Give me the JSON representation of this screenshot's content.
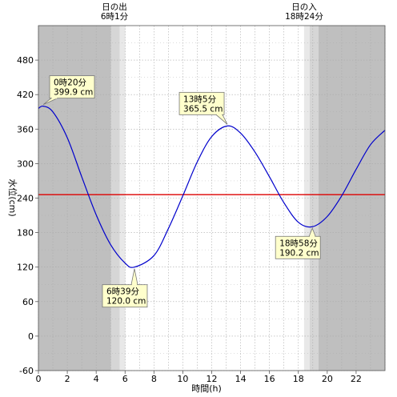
{
  "chart_data": {
    "type": "line",
    "xlabel": "時間(h)",
    "ylabel": "水位(cm)",
    "xlim": [
      0,
      24
    ],
    "ylim": [
      -60,
      540
    ],
    "x_ticks": [
      0,
      2,
      4,
      6,
      8,
      10,
      12,
      14,
      16,
      18,
      20,
      22
    ],
    "x_tick_labels": [
      "0",
      "2",
      "4",
      "6",
      "8",
      "10",
      "12",
      "14",
      "16",
      "18",
      "20",
      "22"
    ],
    "y_ticks": [
      -60,
      0,
      60,
      120,
      180,
      240,
      300,
      360,
      420,
      480
    ],
    "y_tick_labels": [
      "-60",
      "0",
      "60",
      "120",
      "180",
      "240",
      "300",
      "360",
      "420",
      "480"
    ],
    "grid": true,
    "reference_line": {
      "y": 246,
      "color": "#dd0000"
    },
    "sunrise": {
      "label": "日の出",
      "time": "6時1分",
      "hour": 6.017
    },
    "sunset": {
      "label": "日の入",
      "time": "18時24分",
      "hour": 18.4
    },
    "series": [
      {
        "color": "#0000cc",
        "x": [
          0,
          0.333,
          1,
          2,
          3,
          4,
          5,
          6,
          6.65,
          8,
          9,
          10,
          11,
          12,
          13.083,
          14,
          15,
          16,
          17,
          18,
          18.967,
          20,
          21,
          22,
          23,
          24
        ],
        "y": [
          396,
          399.9,
          390,
          345,
          277,
          211,
          159,
          127,
          120.0,
          140,
          187,
          244,
          303,
          347,
          365.5,
          353,
          320,
          277,
          232,
          198,
          190.2,
          208,
          244,
          290,
          333,
          358
        ]
      }
    ],
    "annotations": [
      {
        "time": "0時20分",
        "value": "399.9 cm",
        "x": 0.333,
        "y": 399.9
      },
      {
        "time": "6時39分",
        "value": "120.0 cm",
        "x": 6.65,
        "y": 120.0
      },
      {
        "time": "13時5分",
        "value": "365.5 cm",
        "x": 13.083,
        "y": 365.5
      },
      {
        "time": "18時58分",
        "value": "190.2 cm",
        "x": 18.967,
        "y": 190.2
      }
    ],
    "colors": {
      "night": "#bfbfbf",
      "twilight_mid": "#d6d6d6",
      "twilight_light": "#e8e8e8",
      "grid_major": "#dddddd",
      "grid_minor": "#aaaaaa"
    }
  }
}
